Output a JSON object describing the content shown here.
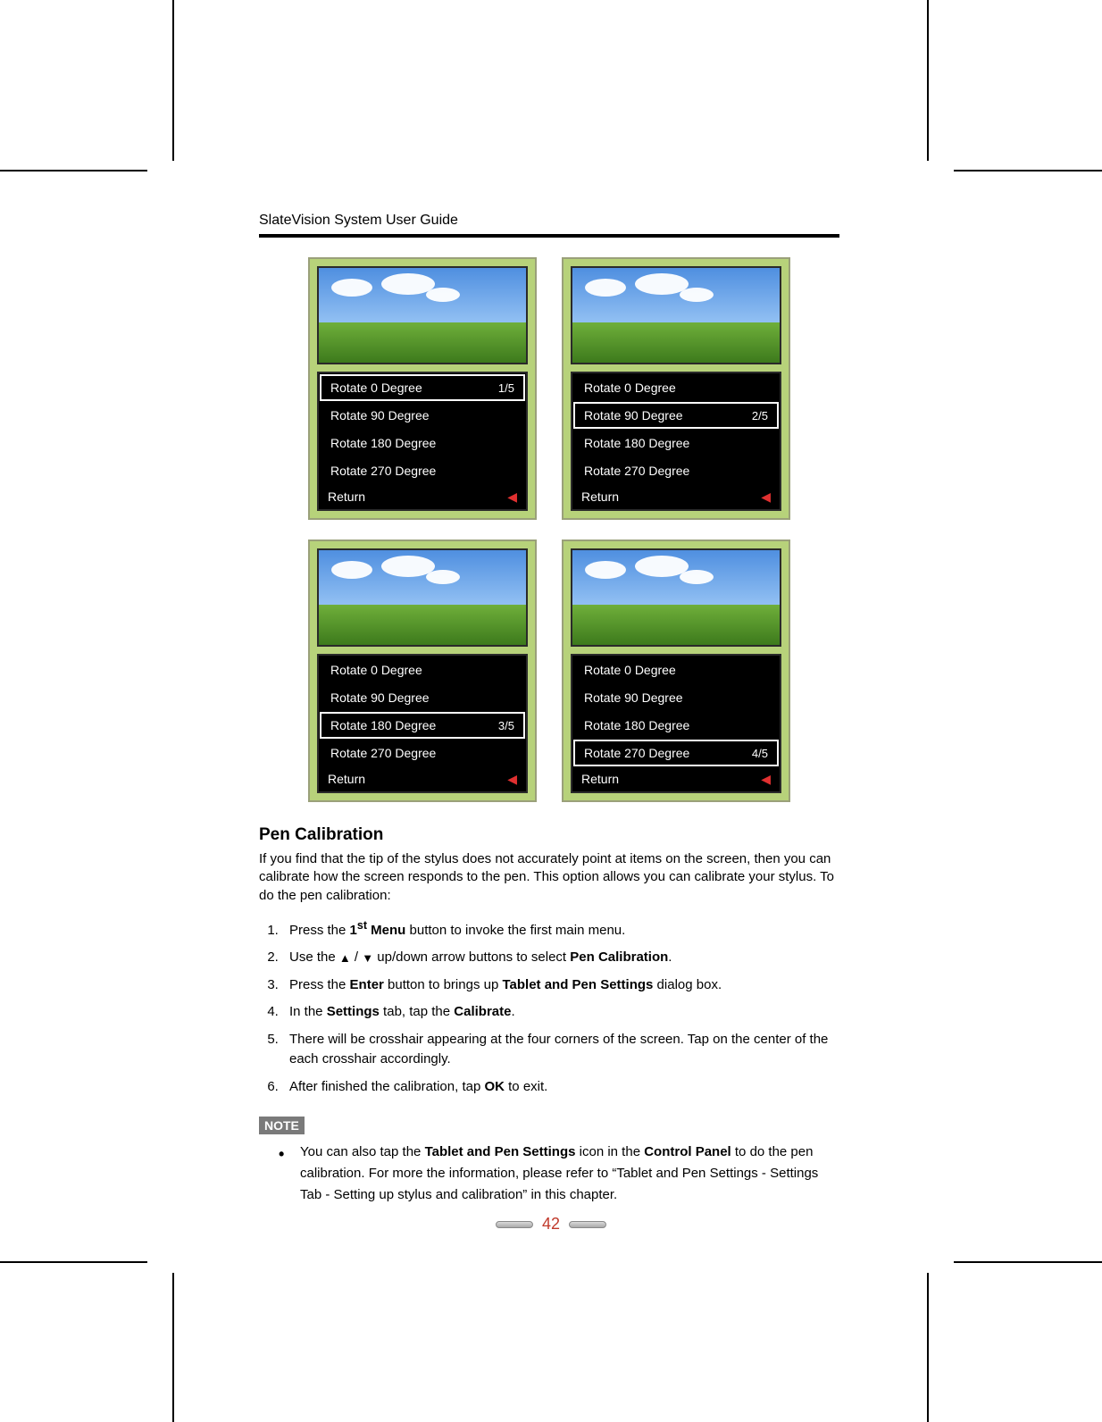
{
  "header": {
    "title": "SlateVision System User Guide"
  },
  "colors": {
    "panel_bg": "#b7d27a",
    "panel_border": "#9aa07a",
    "menu_bg": "#000000",
    "menu_fg": "#ffffff",
    "select_border": "#ffffff",
    "return_arrow": "#e03030",
    "rule": "#000000",
    "note_tag_bg": "#7a7a7a",
    "page_num": "#c0392b"
  },
  "menu_items": [
    "Rotate 0 Degree",
    "Rotate 90 Degree",
    "Rotate 180 Degree",
    "Rotate 270 Degree"
  ],
  "menu_return": "Return",
  "panels": [
    {
      "selected_index": 0,
      "position": "1/5"
    },
    {
      "selected_index": 1,
      "position": "2/5"
    },
    {
      "selected_index": 2,
      "position": "3/5"
    },
    {
      "selected_index": 3,
      "position": "4/5"
    }
  ],
  "section": {
    "title": "Pen Calibration",
    "intro": "If you find that the tip of the stylus does not accurately point at items on the screen, then you can calibrate how the screen responds to the pen. This option allows you can calibrate your stylus. To do the pen calibration:",
    "steps": {
      "s1_a": "Press the ",
      "s1_bold": "1",
      "s1_sup": "st",
      "s1_bold2": " Menu",
      "s1_b": " button to invoke the first main menu.",
      "s2_a": "Use the ",
      "s2_mid": " up/down arrow buttons to select ",
      "s2_bold": "Pen Calibration",
      "s2_b": ".",
      "s3_a": "Press the ",
      "s3_bold1": "Enter",
      "s3_mid": " button to brings up ",
      "s3_bold2": "Tablet and Pen Settings",
      "s3_b": " dialog box.",
      "s4_a": "In the ",
      "s4_bold1": "Settings",
      "s4_mid": " tab, tap the ",
      "s4_bold2": "Calibrate",
      "s4_b": ".",
      "s5": "There will be crosshair appearing at the four corners of the screen. Tap on the center of the each crosshair accordingly.",
      "s6_a": "After finished the calibration, tap ",
      "s6_bold": "OK",
      "s6_b": " to exit."
    },
    "note_label": "NOTE",
    "note": {
      "a": "You can also tap the ",
      "b1": "Tablet and Pen Settings",
      "mid1": " icon in the ",
      "b2": "Control Panel",
      "tail": " to do the pen calibration.  For more the information, please refer to “Tablet and Pen Settings - Settings Tab - Setting up stylus and calibration” in this chapter."
    }
  },
  "page_number": "42"
}
